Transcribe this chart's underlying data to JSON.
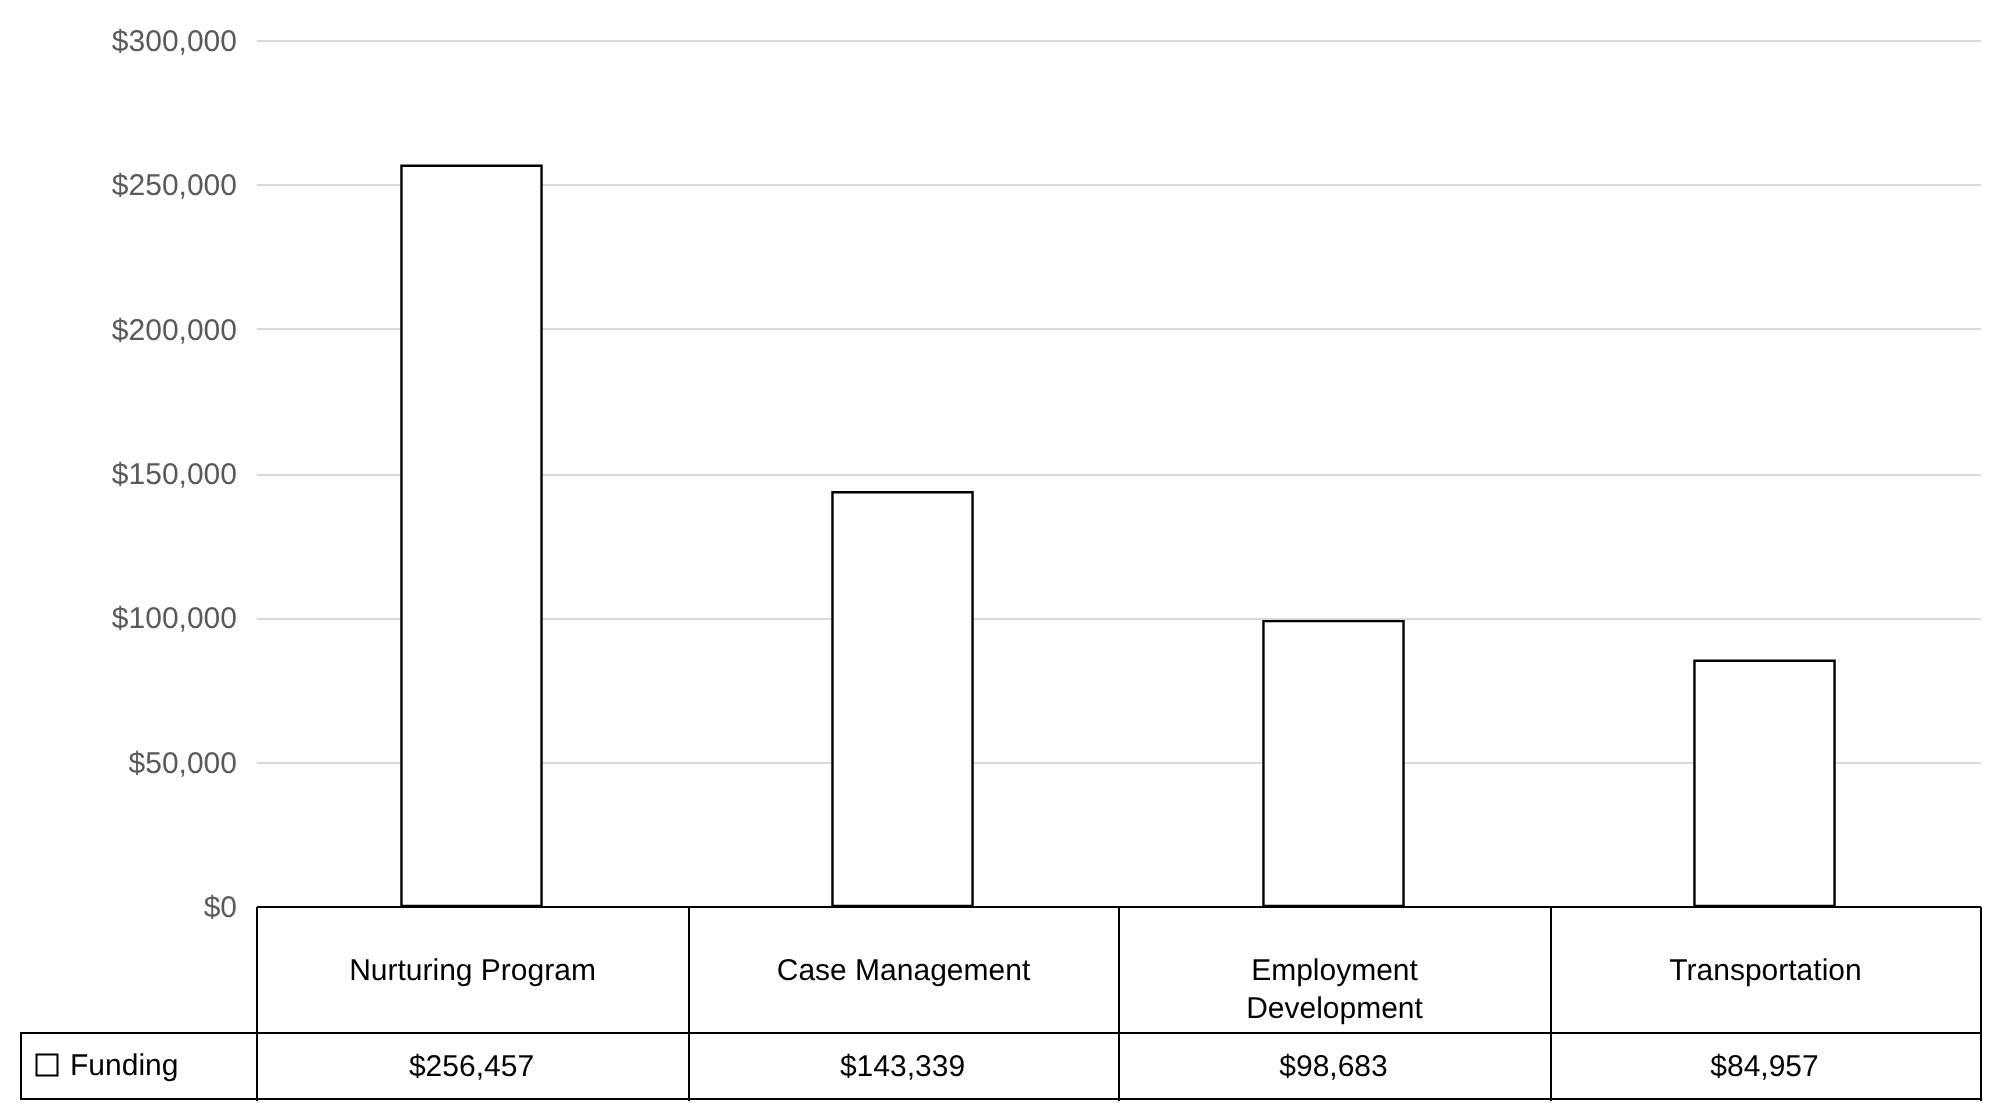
{
  "chart_data": {
    "type": "bar",
    "categories": [
      "Nurturing Program",
      "Case Management",
      "Employment Development",
      "Transportation"
    ],
    "series": [
      {
        "name": "Funding",
        "color": "#ffffff",
        "values": [
          256457,
          143339,
          98683,
          84957
        ],
        "value_labels": [
          "$256,457",
          "$143,339",
          "$98,683",
          "$84,957"
        ]
      }
    ],
    "ylim": [
      0,
      300000
    ],
    "yticks": [
      {
        "value": 0,
        "label": "$0"
      },
      {
        "value": 50000,
        "label": "$50,000"
      },
      {
        "value": 100000,
        "label": "$100,000"
      },
      {
        "value": 150000,
        "label": "$150,000"
      },
      {
        "value": 200000,
        "label": "$200,000"
      },
      {
        "value": 250000,
        "label": "$250,000"
      },
      {
        "value": 300000,
        "label": "$300,000"
      }
    ],
    "grid": "y",
    "legend": "bottom left"
  }
}
